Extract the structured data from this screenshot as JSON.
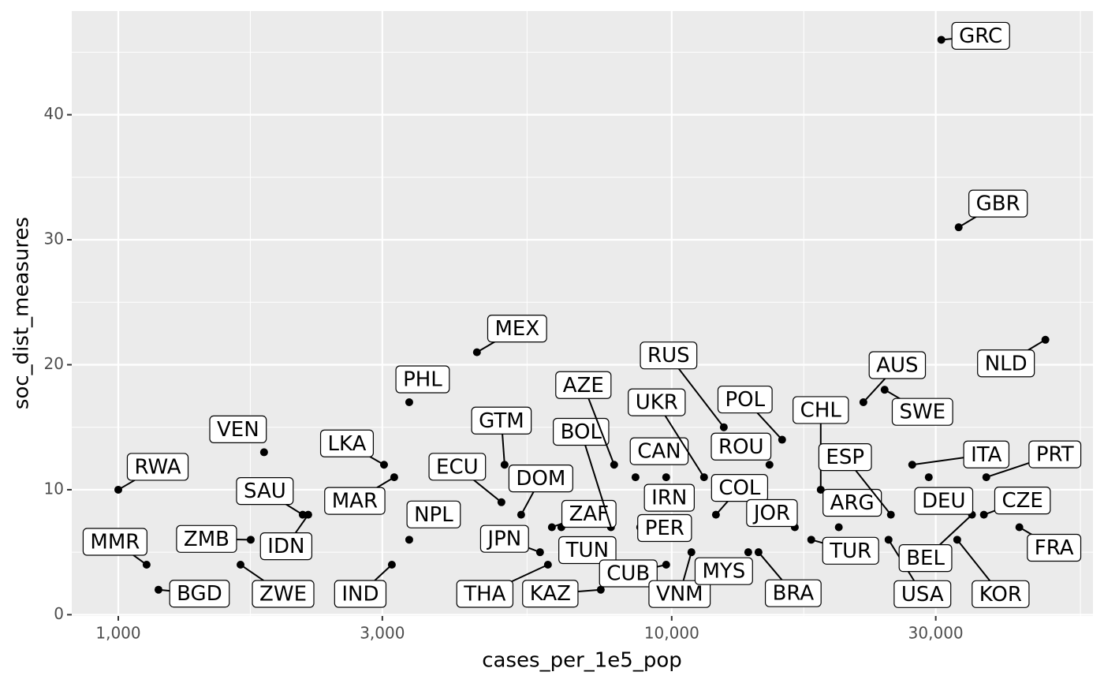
{
  "chart_data": {
    "type": "scatter",
    "x_label": "cases_per_1e5_pop",
    "y_label": "soc_dist_measures",
    "labels": [
      "RWA",
      "MMR",
      "BGD",
      "ZWE",
      "ZMB",
      "VEN",
      "SAU",
      "IDN",
      "LKA",
      "MAR",
      "IND",
      "NPL",
      "PHL",
      "MEX",
      "ECU",
      "GTM",
      "DOM",
      "JPN",
      "THA",
      "ZAF",
      "TUN",
      "KAZ",
      "BOL",
      "AZE",
      "CAN",
      "PER",
      "IRN",
      "CUB",
      "VNM",
      "UKR",
      "COL",
      "RUS",
      "MYS",
      "BRA",
      "ROU",
      "POL",
      "JOR",
      "TUR",
      "CHL",
      "ARG",
      "AUS",
      "SWE",
      "USA",
      "ESP",
      "ITA",
      "DEU",
      "GRC",
      "KOR",
      "GBR",
      "BEL",
      "CZE",
      "PRT",
      "FRA",
      "NLD"
    ],
    "x": [
      1000,
      1125,
      1182,
      1663,
      1735,
      1834,
      2154,
      2204,
      3021,
      3152,
      3121,
      3355,
      3355,
      4447,
      4924,
      4989,
      5345,
      5782,
      5975,
      6074,
      6318,
      7444,
      7767,
      7870,
      8602,
      8770,
      9772,
      9772,
      10854,
      11440,
      12020,
      12420,
      13750,
      14350,
      15020,
      15830,
      16690,
      17870,
      18590,
      20040,
      22200,
      24250,
      24650,
      24890,
      27200,
      29140,
      30700,
      32800,
      33000,
      34880,
      36650,
      37020,
      42480,
      47340
    ],
    "values": [
      10,
      4,
      2,
      4,
      6,
      13,
      8,
      8,
      12,
      11,
      4,
      6,
      17,
      21,
      9,
      12,
      8,
      5,
      4,
      7,
      7,
      2,
      7,
      12,
      11,
      7,
      11,
      4,
      5,
      11,
      8,
      15,
      5,
      5,
      12,
      14,
      7,
      6,
      10,
      7,
      17,
      18,
      6,
      8,
      12,
      11,
      46,
      6,
      31,
      8,
      8,
      11,
      7,
      22
    ],
    "color": "#000000",
    "x_log": true,
    "xlim": [
      824,
      57700
    ],
    "xticks": [
      {
        "value": 1000,
        "label": "1,000"
      },
      {
        "value": 3000,
        "label": "3,000"
      },
      {
        "value": 10000,
        "label": "10,000"
      },
      {
        "value": 30000,
        "label": "30,000"
      }
    ],
    "x_minor_grid": [
      1732,
      5477,
      17320,
      54770
    ],
    "ylim": [
      -0.1,
      48.3
    ],
    "yticks": [
      0,
      10,
      20,
      30,
      40
    ],
    "y_minor_grid": [
      5,
      15,
      25,
      35,
      45
    ],
    "grid": true
  }
}
